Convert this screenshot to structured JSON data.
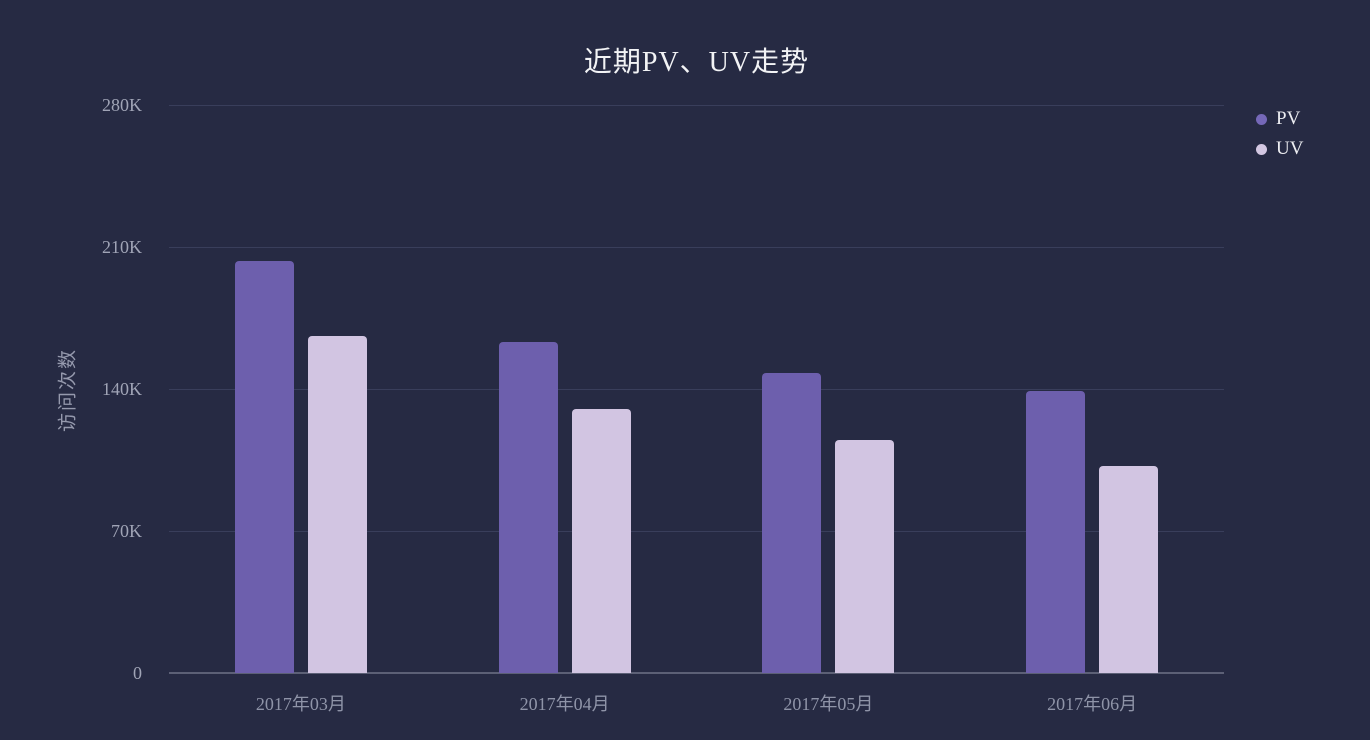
{
  "chart_data": {
    "type": "bar",
    "title": "近期PV、UV走势",
    "xlabel": "",
    "ylabel": "访问次数",
    "categories": [
      "2017年03月",
      "2017年04月",
      "2017年05月",
      "2017年06月"
    ],
    "series": [
      {
        "name": "PV",
        "color": "#6d5fad",
        "legend_dot_color": "#7568b8",
        "values": [
          203000,
          163000,
          148000,
          139000
        ]
      },
      {
        "name": "UV",
        "color": "#d2c5e2",
        "legend_dot_color": "#d3c7e2",
        "values": [
          166000,
          130000,
          115000,
          102000
        ]
      }
    ],
    "ylim": [
      0,
      280000
    ],
    "y_ticks": [
      {
        "value": 0,
        "label": "0"
      },
      {
        "value": 70000,
        "label": "70K"
      },
      {
        "value": 140000,
        "label": "140K"
      },
      {
        "value": 210000,
        "label": "210K"
      },
      {
        "value": 280000,
        "label": "280K"
      }
    ],
    "grid": true,
    "legend_position": "top-right",
    "bar_corner_radius": 4
  },
  "colors": {
    "background": "#262a43",
    "gridline": "rgba(72,78,112,0.55)",
    "axis_line": "#5c6076",
    "title_text": "#f2f3f5",
    "y_tick_text": "#a0a4b6",
    "x_tick_text": "#8f94a8",
    "axis_name_text": "#9599ad",
    "legend_text": "#edeef2"
  }
}
